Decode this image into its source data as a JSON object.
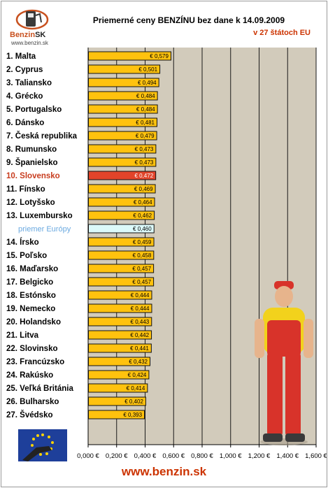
{
  "header": {
    "title": "Priemerné ceny BENZÍNU bez dane k 14.09.2009",
    "subtitle": "v 27 štátoch EU"
  },
  "logo": {
    "brand": "Benzin",
    "brand_suffix": "SK",
    "url": "www.benzin.sk"
  },
  "footer": {
    "url": "www.benzin.sk"
  },
  "colors": {
    "bar": "#ffc20e",
    "bar_highlight": "#e2442a",
    "bar_average": "#dcfafa",
    "plot_bg": "#d2cbbb",
    "label_default": "#000000",
    "label_highlight": "#c83c1e",
    "label_average": "#6aa9e0"
  },
  "chart_data": {
    "type": "bar",
    "orientation": "horizontal",
    "title": "Priemerné ceny BENZÍNU bez dane k 14.09.2009",
    "subtitle": "v 27 štátoch EU",
    "xlim": [
      0,
      1.6
    ],
    "x_ticks": [
      0,
      0.2,
      0.4,
      0.6,
      0.8,
      1.0,
      1.2,
      1.4,
      1.6
    ],
    "x_tick_labels": [
      "0,000 €",
      "0,200 €",
      "0,400 €",
      "0,600 €",
      "0,800 €",
      "1,000 €",
      "1,200 €",
      "1,400 €",
      "1,600 €"
    ],
    "grid": "vertical",
    "categories": [
      "1. Malta",
      "2. Cyprus",
      "3. Taliansko",
      "4. Grécko",
      "5. Portugalsko",
      "6. Dánsko",
      "7. Česká republika",
      "8. Rumunsko",
      "9. Španielsko",
      "10. Slovensko",
      "11. Fínsko",
      "12. Lotyšsko",
      "13. Luxembursko",
      "priemer Európy",
      "14. Írsko",
      "15. Poľsko",
      "16. Maďarsko",
      "17. Belgicko",
      "18. Estónsko",
      "19. Nemecko",
      "20. Holandsko",
      "21. Litva",
      "22. Slovinsko",
      "23. Francúzsko",
      "24. Rakúsko",
      "25. Veľká Británia",
      "26. Bulharsko",
      "27. Švédsko"
    ],
    "values": [
      0.579,
      0.501,
      0.494,
      0.484,
      0.484,
      0.481,
      0.479,
      0.473,
      0.473,
      0.472,
      0.469,
      0.464,
      0.462,
      0.46,
      0.459,
      0.458,
      0.457,
      0.457,
      0.444,
      0.444,
      0.443,
      0.442,
      0.441,
      0.432,
      0.424,
      0.414,
      0.402,
      0.393
    ],
    "value_labels": [
      "€ 0,579",
      "€ 0,501",
      "€ 0,494",
      "€ 0,484",
      "€ 0,484",
      "€ 0,481",
      "€ 0,479",
      "€ 0,473",
      "€ 0,473",
      "€ 0,472",
      "€ 0,469",
      "€ 0,464",
      "€ 0,462",
      "€ 0,460",
      "€ 0,459",
      "€ 0,458",
      "€ 0,457",
      "€ 0,457",
      "€ 0,444",
      "€ 0,444",
      "€ 0,443",
      "€ 0,442",
      "€ 0,441",
      "€ 0,432",
      "€ 0,424",
      "€ 0,414",
      "€ 0,402",
      "€ 0,393"
    ],
    "highlight_category": "10. Slovensko",
    "average_category": "priemer Európy"
  }
}
